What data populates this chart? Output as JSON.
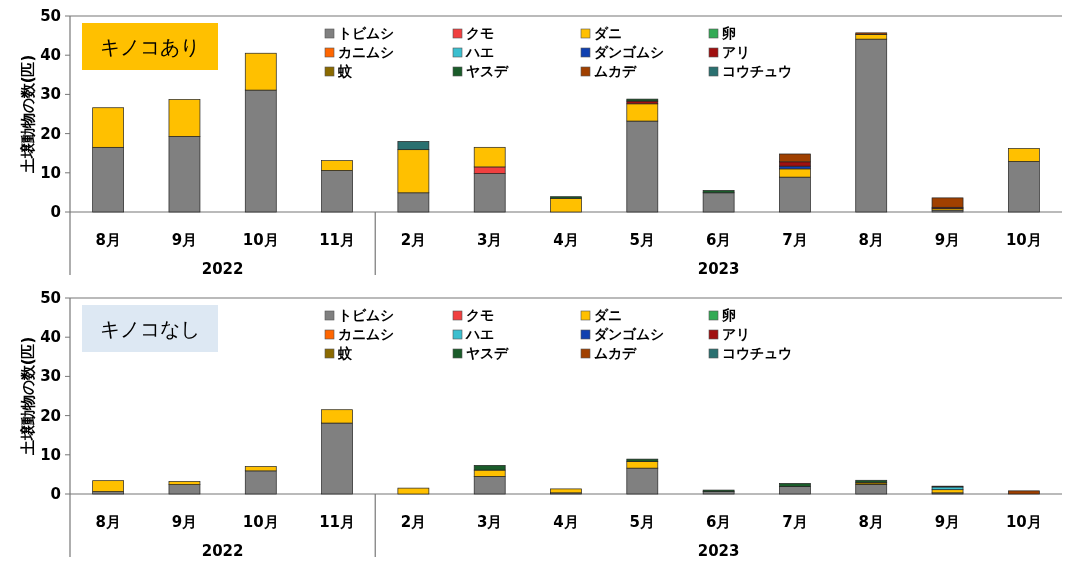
{
  "chart_data": [
    {
      "type": "bar",
      "stacked": true,
      "title": "キノコあり",
      "ylabel": "土壌動物の数(匹)",
      "categories": [
        "8月",
        "9月",
        "10月",
        "11月",
        "2月",
        "3月",
        "4月",
        "5月",
        "6月",
        "7月",
        "8月",
        "9月",
        "10月"
      ],
      "annotations": [
        "2022",
        "2023"
      ],
      "ylim": [
        0,
        50
      ],
      "yticks": [
        0,
        10,
        20,
        30,
        40,
        50
      ],
      "legend": "top",
      "series": [
        {
          "name": "トビムシ",
          "color": "#808080",
          "values": [
            16.5,
            19.3,
            31.1,
            10.6,
            4.9,
            9.8,
            0,
            23.2,
            4.9,
            8.9,
            44.1,
            0.5,
            12.9
          ]
        },
        {
          "name": "クモ",
          "color": "#f04040",
          "values": [
            0,
            0,
            0,
            0,
            0,
            1.7,
            0,
            0,
            0,
            0,
            0,
            0,
            0
          ]
        },
        {
          "name": "ダニ",
          "color": "#ffc000",
          "values": [
            10.1,
            9.4,
            9.4,
            2.5,
            11.0,
            5.0,
            3.5,
            4.4,
            0,
            2.1,
            1.2,
            0.4,
            3.3
          ]
        },
        {
          "name": "卵",
          "color": "#33aa55",
          "values": [
            0,
            0,
            0,
            0,
            0,
            0,
            0,
            0,
            0,
            0,
            0,
            0,
            0
          ]
        },
        {
          "name": "カニムシ",
          "color": "#ff6600",
          "values": [
            0,
            0,
            0,
            0,
            0,
            0,
            0,
            0,
            0,
            0,
            0,
            0,
            0
          ]
        },
        {
          "name": "ハエ",
          "color": "#3bbfcf",
          "values": [
            0,
            0,
            0,
            0,
            0,
            0,
            0,
            0,
            0,
            0,
            0,
            0,
            0
          ]
        },
        {
          "name": "ダンゴムシ",
          "color": "#1040b0",
          "values": [
            0,
            0,
            0,
            0,
            0,
            0,
            0,
            0,
            0,
            0.7,
            0,
            0,
            0
          ]
        },
        {
          "name": "アリ",
          "color": "#a01010",
          "values": [
            0,
            0,
            0,
            0,
            0,
            0,
            0,
            0.7,
            0,
            1.1,
            0,
            0.3,
            0
          ]
        },
        {
          "name": "蚊",
          "color": "#8b6a00",
          "values": [
            0,
            0,
            0,
            0,
            0,
            0,
            0,
            0,
            0,
            0,
            0,
            0,
            0
          ]
        },
        {
          "name": "ヤスデ",
          "color": "#1a5c2a",
          "values": [
            0,
            0,
            0,
            0,
            0,
            0,
            0.4,
            0.5,
            0.6,
            0,
            0,
            0,
            0
          ]
        },
        {
          "name": "ムカデ",
          "color": "#a04000",
          "values": [
            0,
            0,
            0,
            0,
            0,
            0,
            0,
            0,
            0,
            2.0,
            0.4,
            2.4,
            0
          ]
        },
        {
          "name": "コウチュウ",
          "color": "#2a7070",
          "values": [
            0,
            0,
            0,
            0,
            2.1,
            0,
            0,
            0,
            0,
            0,
            0,
            0,
            0
          ]
        }
      ]
    },
    {
      "type": "bar",
      "stacked": true,
      "title": "キノコなし",
      "ylabel": "土壌動物の数(匹)",
      "categories": [
        "8月",
        "9月",
        "10月",
        "11月",
        "2月",
        "3月",
        "4月",
        "5月",
        "6月",
        "7月",
        "8月",
        "9月",
        "10月"
      ],
      "annotations": [
        "2022",
        "2023"
      ],
      "ylim": [
        0,
        50
      ],
      "yticks": [
        0,
        10,
        20,
        30,
        40,
        50
      ],
      "legend": "top",
      "series": [
        {
          "name": "トビムシ",
          "color": "#808080",
          "values": [
            0.6,
            2.4,
            5.9,
            18.1,
            0,
            4.5,
            0.3,
            6.6,
            0.6,
            1.9,
            2.4,
            0.3,
            null
          ]
        },
        {
          "name": "クモ",
          "color": "#f04040",
          "values": [
            0,
            0,
            0,
            0,
            0,
            0,
            0,
            0,
            0,
            0,
            0,
            0,
            0
          ]
        },
        {
          "name": "ダニ",
          "color": "#ffc000",
          "values": [
            2.8,
            0.8,
            1.1,
            3.4,
            1.5,
            1.6,
            1.0,
            1.7,
            0,
            0,
            0,
            0.8,
            0
          ]
        },
        {
          "name": "卵",
          "color": "#33aa55",
          "values": [
            0,
            0,
            0,
            0,
            0,
            0,
            0,
            0,
            0,
            0,
            0,
            0,
            0
          ]
        },
        {
          "name": "カニムシ",
          "color": "#ff6600",
          "values": [
            0,
            0,
            0,
            0,
            0,
            0,
            0,
            0,
            0,
            0,
            0,
            0,
            0
          ]
        },
        {
          "name": "ハエ",
          "color": "#3bbfcf",
          "values": [
            0,
            0,
            0,
            0,
            0,
            0,
            0,
            0,
            0,
            0,
            0,
            0.7,
            0
          ]
        },
        {
          "name": "ダンゴムシ",
          "color": "#1040b0",
          "values": [
            0,
            0,
            0,
            0,
            0,
            0,
            0,
            0,
            0,
            0,
            0,
            0,
            0
          ]
        },
        {
          "name": "アリ",
          "color": "#a01010",
          "values": [
            0,
            0,
            0,
            0,
            0,
            0,
            0,
            0,
            0,
            0,
            0,
            0,
            0
          ]
        },
        {
          "name": "蚊",
          "color": "#8b6a00",
          "values": [
            0,
            0,
            0,
            0,
            0,
            0,
            0,
            0,
            null,
            0,
            0.6,
            0,
            0
          ]
        },
        {
          "name": "ヤスデ",
          "color": "#1a5c2a",
          "values": [
            0,
            0,
            0,
            0,
            0,
            1.2,
            0,
            0.6,
            0.4,
            0.8,
            0.5,
            0,
            0
          ]
        },
        {
          "name": "ムカデ",
          "color": "#a04000",
          "values": [
            0,
            0,
            0,
            0,
            0,
            0,
            0,
            0,
            0,
            0,
            0,
            0.2,
            0.8
          ]
        },
        {
          "name": "コウチュウ",
          "color": "#2a7070",
          "values": [
            0,
            0,
            0,
            0,
            0,
            0,
            0,
            0,
            0,
            0,
            0,
            0,
            0
          ]
        }
      ]
    }
  ]
}
